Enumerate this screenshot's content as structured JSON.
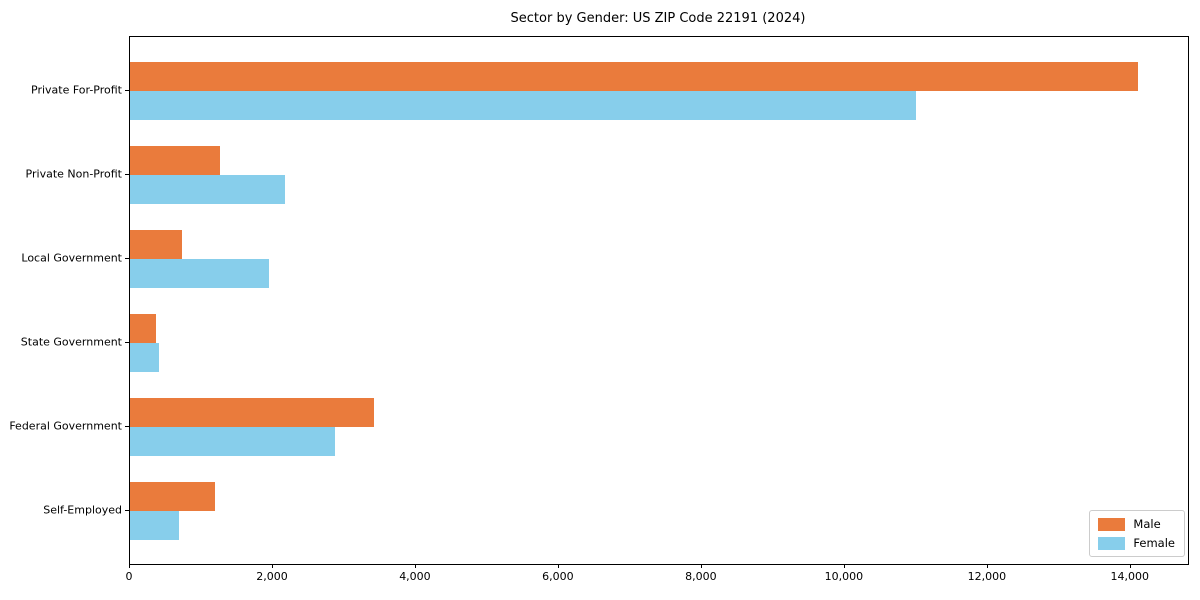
{
  "chart_data": {
    "type": "bar",
    "orientation": "horizontal",
    "title": "Sector by Gender: US ZIP Code 22191 (2024)",
    "categories": [
      "Private For-Profit",
      "Private Non-Profit",
      "Local Government",
      "State Government",
      "Federal Government",
      "Self-Employed"
    ],
    "series": [
      {
        "name": "Male",
        "color": "#ea7b3c",
        "values": [
          14100,
          1260,
          730,
          360,
          3410,
          1190
        ]
      },
      {
        "name": "Female",
        "color": "#87ceeb",
        "values": [
          11000,
          2170,
          1940,
          410,
          2870,
          690
        ]
      }
    ],
    "xlim": [
      0,
      14800
    ],
    "xticks": [
      0,
      2000,
      4000,
      6000,
      8000,
      10000,
      12000,
      14000
    ],
    "xtick_labels": [
      "0",
      "2,000",
      "4,000",
      "6,000",
      "8,000",
      "10,000",
      "12,000",
      "14,000"
    ],
    "xlabel": "",
    "ylabel": "",
    "grid": false,
    "legend": {
      "position": "lower right"
    },
    "colors": {
      "spine": "#000000",
      "background": "#ffffff"
    }
  }
}
